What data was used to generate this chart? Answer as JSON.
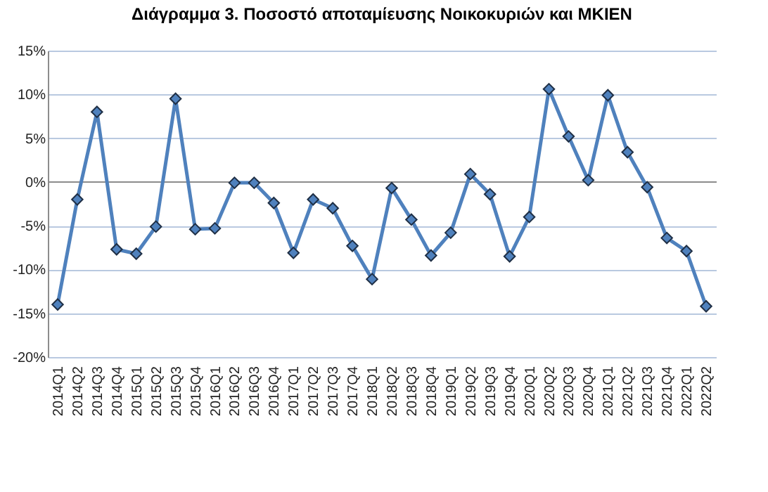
{
  "chart_data": {
    "type": "line",
    "title": "Διάγραμμα 3. Ποσοστό αποταμίευσης Νοικοκυριών και ΜΚΙΕΝ",
    "categories": [
      "2014Q1",
      "2014Q2",
      "2014Q3",
      "2014Q4",
      "2015Q1",
      "2015Q2",
      "2015Q3",
      "2015Q4",
      "2016Q1",
      "2016Q2",
      "2016Q3",
      "2016Q4",
      "2017Q1",
      "2017Q2",
      "2017Q3",
      "2017Q4",
      "2018Q1",
      "2018Q2",
      "2018Q3",
      "2018Q4",
      "2019Q1",
      "2019Q2",
      "2019Q3",
      "2019Q4",
      "2020Q1",
      "2020Q2",
      "2020Q3",
      "2020Q4",
      "2021Q1",
      "2021Q2",
      "2021Q3",
      "2021Q4",
      "2022Q1",
      "2022Q2"
    ],
    "series": [
      {
        "color": "#4f81bd",
        "values": [
          -14,
          -2,
          8,
          -7.7,
          -8.2,
          -5.1,
          9.5,
          -5.4,
          -5.3,
          -0.1,
          -0.1,
          -2.4,
          -8.1,
          -2,
          -3,
          -7.3,
          -11.1,
          -0.7,
          -4.3,
          -8.4,
          -5.8,
          0.9,
          -1.4,
          -8.5,
          -4,
          10.6,
          5.2,
          0.2,
          9.9,
          3.4,
          -0.6,
          -6.4,
          -7.9,
          -14.2
        ]
      }
    ],
    "ylim": [
      -20,
      15
    ],
    "yticks": [
      {
        "value": -20,
        "label": "-20%"
      },
      {
        "value": -15,
        "label": "-15%"
      },
      {
        "value": -10,
        "label": "-10%"
      },
      {
        "value": -5,
        "label": "-5%"
      },
      {
        "value": 0,
        "label": "0%"
      },
      {
        "value": 5,
        "label": "5%"
      },
      {
        "value": 10,
        "label": "10%"
      },
      {
        "value": 15,
        "label": "15%"
      }
    ],
    "grid": "y",
    "marker": "diamond",
    "line_style": "solid"
  }
}
